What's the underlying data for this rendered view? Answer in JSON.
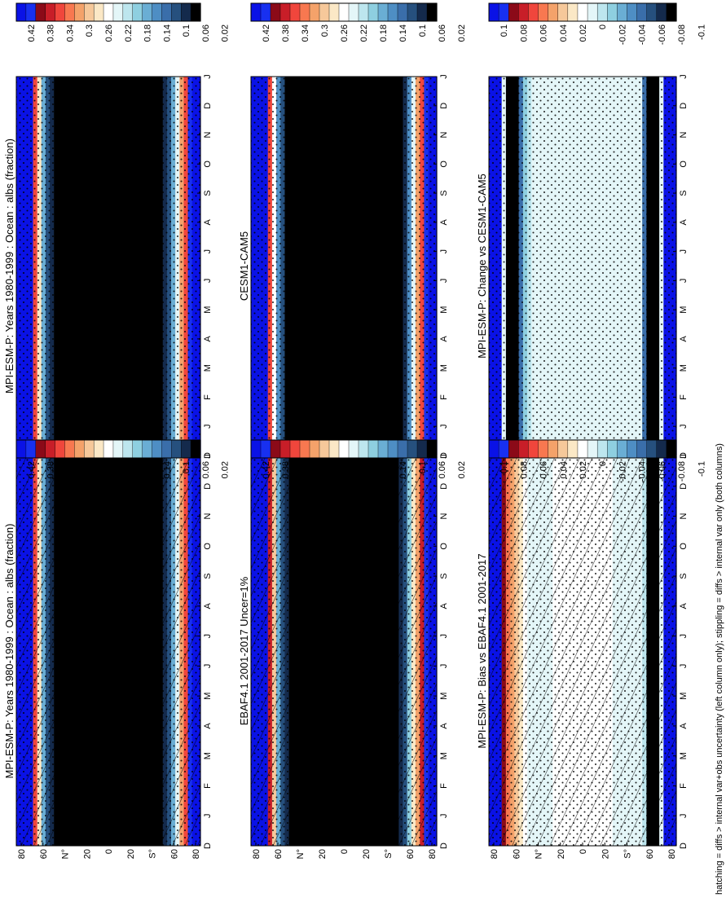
{
  "figure_note": "hatching = diffs > internal var+obs uncertainty (left column only); stippling = diffs > internal var only (both columns)",
  "colors": {
    "abs_scale": [
      "#0a12e6",
      "#1830f0",
      "#8b0a18",
      "#c81e28",
      "#f0463c",
      "#f87850",
      "#f4a26a",
      "#f6c89a",
      "#fbe8c6",
      "#ffffff",
      "#e4f6f8",
      "#bde6ee",
      "#8ecfe0",
      "#6aaed4",
      "#4e8ec4",
      "#3a6eaa",
      "#26507e",
      "#142a4c",
      "#000000"
    ],
    "diff_scale": [
      "#0a12e6",
      "#1830f0",
      "#8b0a18",
      "#c81e28",
      "#f0463c",
      "#f87850",
      "#f4a26a",
      "#f6c89a",
      "#fbe8c6",
      "#ffffff",
      "#e4f6f8",
      "#bde6ee",
      "#8ecfe0",
      "#6aaed4",
      "#4e8ec4",
      "#3a6eaa",
      "#26507e",
      "#142a4c",
      "#000000"
    ]
  },
  "chart_data": [
    {
      "type": "heatmap",
      "title": "MPI-ESM-P: Years 1980-1999 : Ocean : albs (fraction)",
      "x": [
        "D",
        "J",
        "F",
        "M",
        "A",
        "M",
        "J",
        "J",
        "A",
        "S",
        "O",
        "N",
        "D",
        "J"
      ],
      "y_ticks": [
        "80",
        "60",
        "N°",
        "20",
        "0",
        "20",
        "S°",
        "60",
        "80"
      ],
      "colorbar_ticks": [
        "0.42",
        "0.38",
        "0.34",
        "0.3",
        "0.26",
        "0.22",
        "0.18",
        "0.14",
        "0.1",
        "0.06",
        "0.02"
      ],
      "hatching": true,
      "stippling": true,
      "profile": {
        "lat": [
          -90,
          -80,
          -70,
          -65,
          -60,
          -55,
          -45,
          -30,
          -15,
          0,
          15,
          30,
          45,
          55,
          62,
          68,
          75,
          90
        ],
        "value": [
          0.44,
          0.44,
          0.3,
          0.22,
          0.14,
          0.1,
          0.08,
          0.07,
          0.065,
          0.065,
          0.065,
          0.07,
          0.08,
          0.1,
          0.16,
          0.3,
          0.44,
          0.44
        ]
      }
    },
    {
      "type": "heatmap",
      "title": "MPI-ESM-P: Years 1980-1999 : Ocean : albs (fraction)",
      "x": [
        "D",
        "J",
        "F",
        "M",
        "A",
        "M",
        "J",
        "J",
        "A",
        "S",
        "O",
        "N",
        "D",
        "J"
      ],
      "y_ticks": [
        "80",
        "60",
        "N°",
        "20",
        "0",
        "20",
        "S°",
        "60",
        "80"
      ],
      "colorbar_ticks": [
        "0.42",
        "0.38",
        "0.34",
        "0.3",
        "0.26",
        "0.22",
        "0.18",
        "0.14",
        "0.1",
        "0.06",
        "0.02"
      ],
      "hatching": false,
      "stippling": true,
      "profile": {
        "lat": [
          -90,
          -80,
          -70,
          -65,
          -60,
          -55,
          -45,
          -30,
          -15,
          0,
          15,
          30,
          45,
          55,
          62,
          68,
          75,
          90
        ],
        "value": [
          0.44,
          0.44,
          0.3,
          0.22,
          0.14,
          0.1,
          0.08,
          0.07,
          0.065,
          0.065,
          0.065,
          0.07,
          0.08,
          0.1,
          0.16,
          0.3,
          0.44,
          0.44
        ]
      }
    },
    {
      "type": "heatmap",
      "title": "EBAF4.1 2001-2017 Uncer=1%",
      "x": [
        "D",
        "J",
        "F",
        "M",
        "A",
        "M",
        "J",
        "J",
        "A",
        "S",
        "O",
        "N",
        "D",
        "J"
      ],
      "y_ticks": [
        "80",
        "60",
        "N°",
        "20",
        "0",
        "20",
        "S°",
        "60",
        "80"
      ],
      "colorbar_ticks": [
        "0.42",
        "0.38",
        "0.34",
        "0.3",
        "0.26",
        "0.22",
        "0.18",
        "0.14",
        "0.1",
        "0.06",
        "0.02"
      ],
      "hatching": true,
      "stippling": true,
      "profile": {
        "lat": [
          -90,
          -80,
          -70,
          -65,
          -60,
          -55,
          -45,
          -30,
          -15,
          0,
          15,
          30,
          45,
          55,
          62,
          68,
          75,
          90
        ],
        "value": [
          0.44,
          0.44,
          0.32,
          0.24,
          0.14,
          0.1,
          0.08,
          0.07,
          0.065,
          0.06,
          0.065,
          0.07,
          0.08,
          0.1,
          0.16,
          0.32,
          0.44,
          0.44
        ]
      }
    },
    {
      "type": "heatmap",
      "title": "CESM1-CAM5",
      "x": [
        "D",
        "J",
        "F",
        "M",
        "A",
        "M",
        "J",
        "J",
        "A",
        "S",
        "O",
        "N",
        "D",
        "J"
      ],
      "y_ticks": [
        "80",
        "60",
        "N°",
        "20",
        "0",
        "20",
        "S°",
        "60",
        "80"
      ],
      "colorbar_ticks": [
        "0.42",
        "0.38",
        "0.34",
        "0.3",
        "0.26",
        "0.22",
        "0.18",
        "0.14",
        "0.1",
        "0.06",
        "0.02"
      ],
      "hatching": false,
      "stippling": true,
      "profile": {
        "lat": [
          -90,
          -80,
          -70,
          -65,
          -60,
          -55,
          -45,
          -30,
          -15,
          0,
          15,
          30,
          45,
          55,
          62,
          68,
          75,
          90
        ],
        "value": [
          0.44,
          0.44,
          0.3,
          0.2,
          0.12,
          0.09,
          0.07,
          0.06,
          0.06,
          0.06,
          0.06,
          0.065,
          0.075,
          0.09,
          0.14,
          0.28,
          0.44,
          0.44
        ]
      }
    },
    {
      "type": "heatmap",
      "title": "MPI-ESM-P: Bias vs EBAF4.1 2001-2017",
      "x": [
        "D",
        "J",
        "F",
        "M",
        "A",
        "M",
        "J",
        "J",
        "A",
        "S",
        "O",
        "N",
        "D",
        "J"
      ],
      "y_ticks": [
        "80",
        "60",
        "N°",
        "20",
        "0",
        "20",
        "S°",
        "60",
        "80"
      ],
      "colorbar_ticks": [
        "0.1",
        "0.08",
        "0.06",
        "0.04",
        "0.02",
        "0",
        "-0.02",
        "-0.04",
        "-0.06",
        "-0.08",
        "-0.1"
      ],
      "hatching": true,
      "stippling": true,
      "profile": {
        "lat": [
          -90,
          -80,
          -70,
          -64,
          -60,
          -55,
          -45,
          -30,
          -15,
          0,
          15,
          30,
          45,
          55,
          62,
          70,
          80,
          90
        ],
        "value": [
          0.12,
          0.12,
          -0.12,
          -0.12,
          0.0,
          0.012,
          0.018,
          0.02,
          0.022,
          0.024,
          0.022,
          0.02,
          0.018,
          0.02,
          0.04,
          0.06,
          0.12,
          0.12
        ]
      }
    },
    {
      "type": "heatmap",
      "title": "MPI-ESM-P: Change vs CESM1-CAM5",
      "x": [
        "D",
        "J",
        "F",
        "M",
        "A",
        "M",
        "J",
        "J",
        "A",
        "S",
        "O",
        "N",
        "D",
        "J"
      ],
      "y_ticks": [
        "80",
        "60",
        "N°",
        "20",
        "0",
        "20",
        "S°",
        "60",
        "80"
      ],
      "colorbar_ticks": [
        "0.1",
        "0.08",
        "0.06",
        "0.04",
        "0.02",
        "0",
        "-0.02",
        "-0.04",
        "-0.06",
        "-0.08",
        "-0.1"
      ],
      "hatching": false,
      "stippling": true,
      "profile": {
        "lat": [
          -90,
          -80,
          -70,
          -64,
          -60,
          -55,
          -45,
          -30,
          -15,
          0,
          15,
          30,
          45,
          55,
          62,
          70,
          80,
          90
        ],
        "value": [
          0.12,
          0.12,
          -0.12,
          -0.12,
          -0.04,
          0.014,
          0.016,
          0.016,
          0.018,
          0.018,
          0.016,
          0.014,
          0.014,
          0.0,
          -0.06,
          -0.12,
          0.12,
          0.12
        ]
      }
    }
  ]
}
